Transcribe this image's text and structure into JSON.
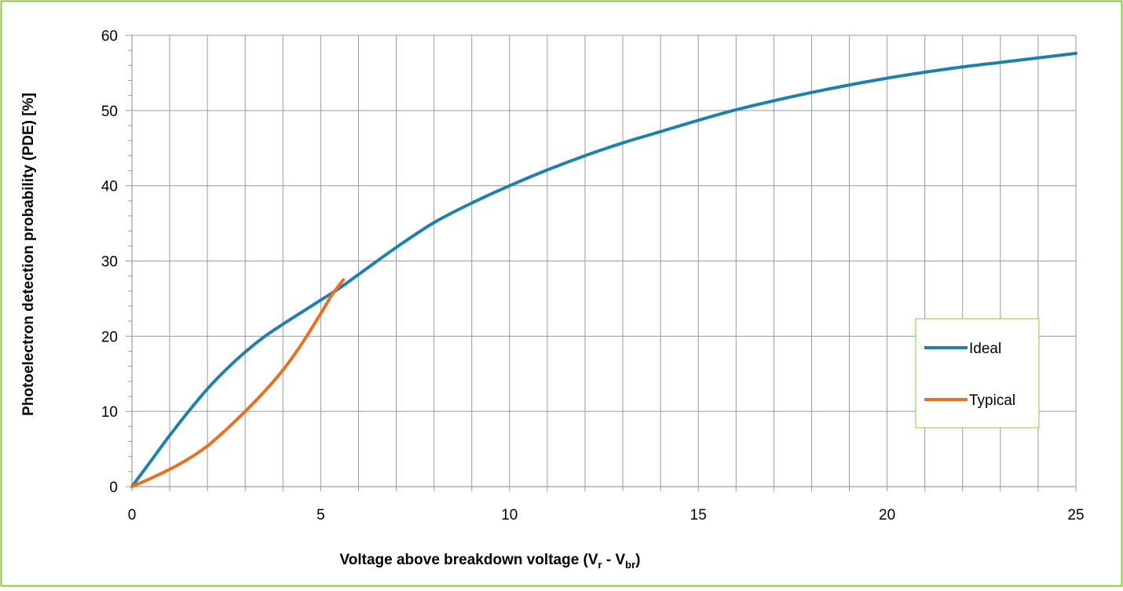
{
  "colors": {
    "border": "#8DC63F",
    "grid": "#9a9a9a",
    "ideal": "#1F7FAE",
    "typical": "#E8701F"
  },
  "chart_data": {
    "type": "line",
    "xlabel": {
      "main": "Voltage above breakdown voltage (V",
      "sub1": "r",
      "mid": " - V",
      "sub2": "br",
      "end": ")"
    },
    "ylabel": "Photoelectron detection probability (PDE) [%]",
    "xlim": [
      0,
      25
    ],
    "ylim": [
      0,
      60
    ],
    "x_ticks": [
      "0",
      "5",
      "10",
      "15",
      "20",
      "25"
    ],
    "y_ticks": [
      "0",
      "10",
      "20",
      "30",
      "40",
      "50",
      "60"
    ],
    "x_minor_step": 1,
    "y_minor_step": 2,
    "grid": true,
    "legend_position": "right",
    "series": [
      {
        "name": "Ideal",
        "color": "#1F7FAE",
        "x": [
          0,
          0.5,
          1,
          1.5,
          2,
          2.5,
          3,
          3.5,
          4,
          4.5,
          5,
          5.5,
          6,
          7,
          8,
          9,
          10,
          11,
          12,
          13,
          14,
          15,
          16,
          17,
          18,
          19,
          20,
          21,
          22,
          23,
          24,
          25
        ],
        "y": [
          0,
          3.4,
          6.8,
          10.0,
          13.0,
          15.6,
          17.9,
          19.9,
          21.6,
          23.2,
          24.8,
          26.4,
          28.2,
          31.8,
          35.1,
          37.7,
          40.0,
          42.1,
          44.0,
          45.7,
          47.2,
          48.7,
          50.1,
          51.3,
          52.4,
          53.4,
          54.3,
          55.1,
          55.8,
          56.4,
          57.0,
          57.6
        ]
      },
      {
        "name": "Typical",
        "color": "#E8701F",
        "x": [
          0,
          0.5,
          1,
          1.5,
          2,
          2.5,
          3,
          3.5,
          4,
          4.5,
          5,
          5.3,
          5.6
        ],
        "y": [
          0,
          1.1,
          2.3,
          3.7,
          5.4,
          7.6,
          10.0,
          12.6,
          15.5,
          19.0,
          23.0,
          25.5,
          27.5
        ]
      }
    ]
  }
}
